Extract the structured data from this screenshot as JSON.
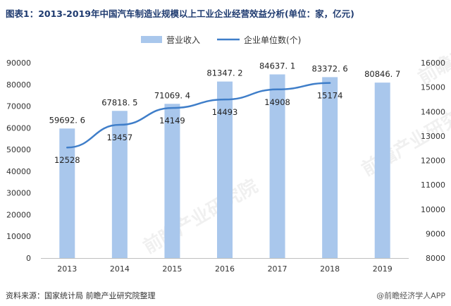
{
  "title": "图表1：2013-2019年中国汽车制造业规模以上工业企业经营效益分析(单位：家，亿元)",
  "source": "资料来源：国家统计局 前瞻产业研究院整理",
  "credit": "@前瞻经济学人APP",
  "watermark": "前瞻产业研究院",
  "colors": {
    "bar": "#a9c7ec",
    "line": "#3f7ec9",
    "title": "#1f3b70"
  },
  "chart_data": {
    "type": "bar",
    "categories": [
      "2013",
      "2014",
      "2015",
      "2016",
      "2017",
      "2018",
      "2019"
    ],
    "series": [
      {
        "name": "营业收入",
        "type": "bar",
        "axis": "left",
        "values": [
          59692.6,
          67818.5,
          71069.4,
          81347.2,
          84637.1,
          83372.6,
          80846.7
        ],
        "labels": [
          "59692. 6",
          "67818. 5",
          "71069. 4",
          "81347. 2",
          "84637. 1",
          "83372. 6",
          "80846. 7"
        ]
      },
      {
        "name": "企业单位数(个)",
        "type": "line",
        "axis": "right",
        "values": [
          12528,
          13457,
          14149,
          14493,
          14908,
          15174,
          null
        ],
        "labels": [
          "12528",
          "13457",
          "14149",
          "14493",
          "14908",
          "15174",
          ""
        ]
      }
    ],
    "y_left": {
      "min": 0,
      "max": 90000,
      "ticks": [
        "0",
        "10000",
        "20000",
        "30000",
        "40000",
        "50000",
        "60000",
        "70000",
        "80000",
        "90000"
      ]
    },
    "y_right": {
      "min": 8000,
      "max": 16000,
      "ticks": [
        "8000",
        "9000",
        "10000",
        "11000",
        "12000",
        "13000",
        "14000",
        "15000",
        "16000"
      ]
    },
    "legend_position": "top-center",
    "grid": false
  }
}
